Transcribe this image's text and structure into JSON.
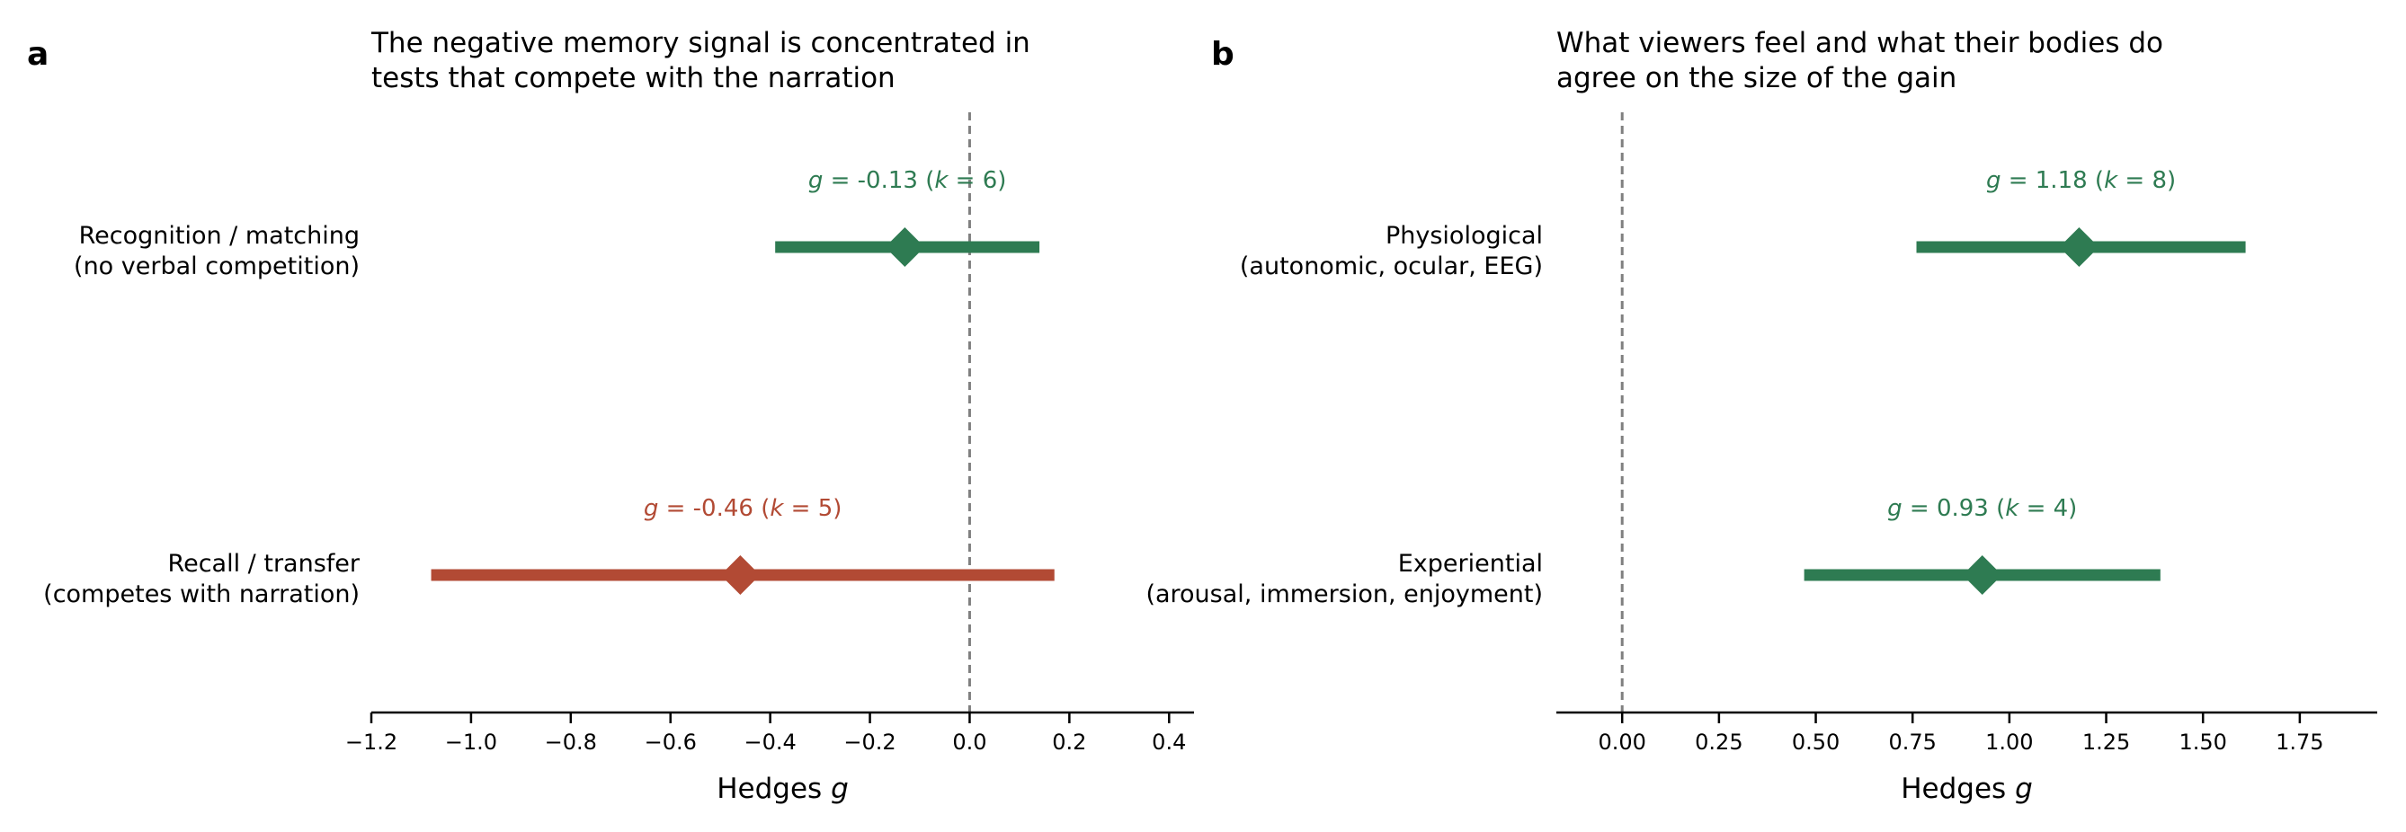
{
  "colors": {
    "green": "#2e7b52",
    "red": "#b24a34",
    "reference_line": "#808080",
    "axis": "#000000"
  },
  "chart_data": [
    {
      "type": "forest",
      "panel_letter": "a",
      "title": [
        "The negative memory signal is concentrated in",
        "tests that compete with the narration"
      ],
      "xlabel": "Hedges g",
      "xlim": [
        -1.2,
        0.45
      ],
      "xticks": [
        -1.2,
        -1.0,
        -0.8,
        -0.6,
        -0.4,
        -0.2,
        0.0,
        0.2,
        0.4
      ],
      "xtick_labels": [
        "−1.2",
        "−1.0",
        "−0.8",
        "−0.6",
        "−0.4",
        "−0.2",
        "0.0",
        "0.2",
        "0.4"
      ],
      "reference_x": 0.0,
      "grid": false,
      "rows": [
        {
          "label": [
            "Recognition / matching",
            "(no verbal competition)"
          ],
          "g": -0.13,
          "ci": [
            -0.39,
            0.14
          ],
          "k": 6,
          "g_text": "-0.13",
          "k_text": "6",
          "color": "green"
        },
        {
          "label": [
            "Recall / transfer",
            "(competes with narration)"
          ],
          "g": -0.46,
          "ci": [
            -1.08,
            0.17
          ],
          "k": 5,
          "g_text": "-0.46",
          "k_text": "5",
          "color": "red"
        }
      ]
    },
    {
      "type": "forest",
      "panel_letter": "b",
      "title": [
        "What viewers feel and what their bodies do",
        "agree on the size of the gain"
      ],
      "xlabel": "Hedges g",
      "xlim": [
        -0.17,
        1.95
      ],
      "xticks": [
        0.0,
        0.25,
        0.5,
        0.75,
        1.0,
        1.25,
        1.5,
        1.75
      ],
      "xtick_labels": [
        "0.00",
        "0.25",
        "0.50",
        "0.75",
        "1.00",
        "1.25",
        "1.50",
        "1.75"
      ],
      "reference_x": 0.0,
      "grid": false,
      "rows": [
        {
          "label": [
            "Physiological",
            "(autonomic, ocular, EEG)"
          ],
          "g": 1.18,
          "ci": [
            0.76,
            1.61
          ],
          "k": 8,
          "g_text": "1.18",
          "k_text": "8",
          "color": "green"
        },
        {
          "label": [
            "Experiential",
            "(arousal, immersion, enjoyment)"
          ],
          "g": 0.93,
          "ci": [
            0.47,
            1.39
          ],
          "k": 4,
          "g_text": "0.93",
          "k_text": "4",
          "color": "green"
        }
      ]
    }
  ]
}
